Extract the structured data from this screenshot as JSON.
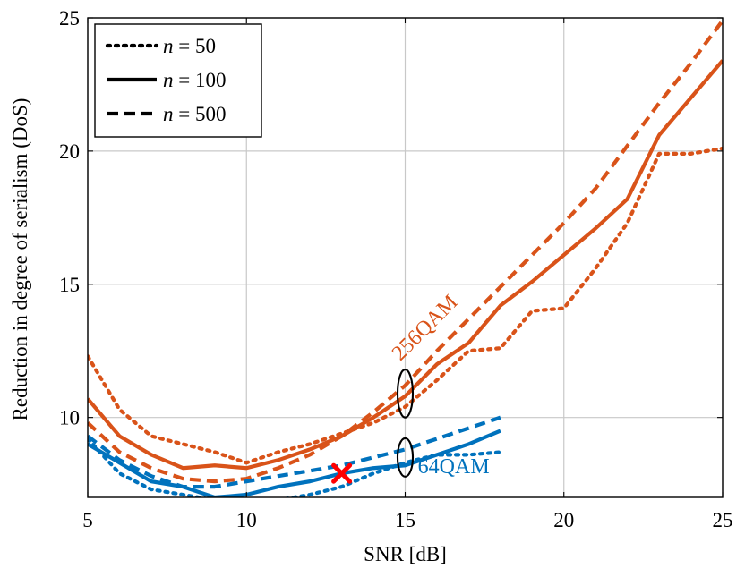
{
  "chart_data": {
    "type": "line",
    "title": "",
    "xlabel": "SNR [dB]",
    "ylabel": "Reduction in degree of serialism (DoS)",
    "xlim": [
      5,
      25
    ],
    "ylim": [
      7,
      25
    ],
    "xticks": [
      5,
      10,
      15,
      20,
      25
    ],
    "yticks": [
      10,
      15,
      20,
      25
    ],
    "grid": true,
    "legend_position": "top-left",
    "colors": {
      "orange": "#d95319",
      "blue": "#0072bd",
      "marker": "#ff0000",
      "grid": "#c8c8c8"
    },
    "legend": [
      {
        "style": "dotted",
        "prefix": "n",
        "label": " = 50"
      },
      {
        "style": "solid",
        "prefix": "n",
        "label": " = 100"
      },
      {
        "style": "dashed",
        "prefix": "n",
        "label": " = 500"
      }
    ],
    "series": [
      {
        "group": "256QAM",
        "color": "orange",
        "style": "dotted",
        "x": [
          5,
          6,
          7,
          8,
          9,
          10,
          11,
          12,
          13,
          14,
          15,
          16,
          17,
          18,
          19,
          20,
          21,
          22,
          23,
          24,
          25
        ],
        "y": [
          12.3,
          10.3,
          9.3,
          9.0,
          8.7,
          8.3,
          8.7,
          9.0,
          9.4,
          9.8,
          10.4,
          11.4,
          12.5,
          12.6,
          14.0,
          14.1,
          15.6,
          17.3,
          19.9,
          19.9,
          20.1
        ]
      },
      {
        "group": "256QAM",
        "color": "orange",
        "style": "solid",
        "x": [
          5,
          6,
          7,
          8,
          9,
          10,
          11,
          12,
          13,
          14,
          15,
          16,
          17,
          18,
          19,
          20,
          21,
          22,
          23,
          24,
          25
        ],
        "y": [
          10.7,
          9.3,
          8.6,
          8.1,
          8.2,
          8.1,
          8.4,
          8.8,
          9.3,
          10.0,
          10.8,
          12.0,
          12.8,
          14.2,
          15.1,
          16.1,
          17.1,
          18.2,
          20.6,
          22.0,
          23.4
        ]
      },
      {
        "group": "256QAM",
        "color": "orange",
        "style": "dashed",
        "x": [
          5,
          6,
          7,
          8,
          9,
          10,
          11,
          12,
          13,
          14,
          15,
          16,
          17,
          18,
          19,
          20,
          21,
          22,
          23,
          24,
          25
        ],
        "y": [
          9.8,
          8.7,
          8.1,
          7.7,
          7.6,
          7.7,
          8.1,
          8.6,
          9.3,
          10.2,
          11.2,
          12.5,
          13.7,
          14.9,
          16.1,
          17.3,
          18.6,
          20.2,
          21.8,
          23.3,
          24.9
        ]
      },
      {
        "group": "64QAM",
        "color": "blue",
        "style": "dotted",
        "x": [
          5,
          6,
          7,
          8,
          9,
          10,
          11,
          12,
          13,
          14,
          15,
          16,
          17,
          18
        ],
        "y": [
          9.2,
          7.9,
          7.3,
          7.1,
          6.9,
          6.9,
          6.9,
          7.1,
          7.4,
          7.9,
          8.3,
          8.6,
          8.6,
          8.7
        ]
      },
      {
        "group": "64QAM",
        "color": "blue",
        "style": "solid",
        "x": [
          5,
          6,
          7,
          8,
          9,
          10,
          11,
          12,
          13,
          14,
          15,
          16,
          17,
          18
        ],
        "y": [
          9.0,
          8.3,
          7.6,
          7.4,
          7.0,
          7.1,
          7.4,
          7.6,
          7.9,
          8.1,
          8.2,
          8.6,
          9.0,
          9.5
        ]
      },
      {
        "group": "64QAM",
        "color": "blue",
        "style": "dashed",
        "x": [
          5,
          6,
          7,
          8,
          9,
          10,
          11,
          12,
          13,
          14,
          15,
          16,
          17,
          18
        ],
        "y": [
          9.3,
          8.4,
          7.8,
          7.4,
          7.4,
          7.6,
          7.8,
          8.0,
          8.2,
          8.5,
          8.8,
          9.2,
          9.6,
          10.0
        ]
      }
    ],
    "annotations": [
      {
        "text": "256QAM",
        "color": "orange",
        "x": 14.85,
        "y": 12.1,
        "rotate": -45,
        "anchor": "start"
      },
      {
        "text": "64QAM",
        "color": "blue",
        "x": 15.4,
        "y": 7.9,
        "rotate": 0,
        "anchor": "start"
      }
    ],
    "ellipses": [
      {
        "cx": 15.0,
        "cy": 10.9,
        "rx": 0.24,
        "ry": 0.9
      },
      {
        "cx": 15.0,
        "cy": 8.5,
        "rx": 0.24,
        "ry": 0.72
      }
    ],
    "marker": {
      "x": 13.0,
      "y": 7.9,
      "shape": "x",
      "color": "marker"
    }
  }
}
